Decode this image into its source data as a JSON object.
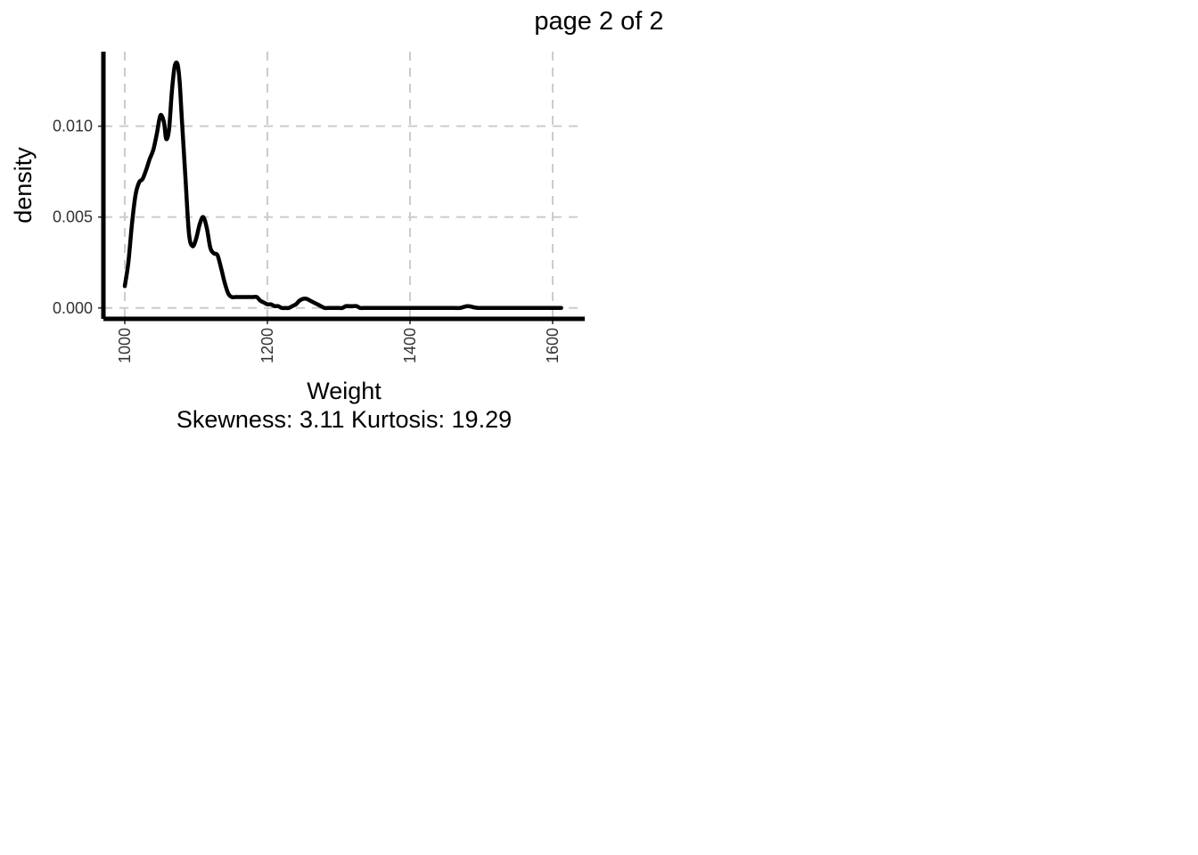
{
  "page_label": "page 2 of 2",
  "chart_data": {
    "type": "line",
    "xlabel": "Weight",
    "subtitle": "Skewness: 3.11 Kurtosis: 19.29",
    "ylabel": "density",
    "xlim": [
      970,
      1645
    ],
    "ylim": [
      -0.0006,
      0.0141
    ],
    "x_ticks": [
      1000,
      1200,
      1400,
      1600
    ],
    "x_tick_labels": [
      "1000",
      "1200",
      "1400",
      "1600"
    ],
    "y_ticks": [
      0.0,
      0.005,
      0.01
    ],
    "y_tick_labels": [
      "0.000",
      "0.005",
      "0.010"
    ],
    "grid": true,
    "series": [
      {
        "x": [
          1000,
          1005,
          1010,
          1015,
          1020,
          1025,
          1030,
          1035,
          1040,
          1045,
          1050,
          1055,
          1058,
          1062,
          1066,
          1070,
          1074,
          1077,
          1080,
          1085,
          1090,
          1095,
          1100,
          1105,
          1110,
          1115,
          1120,
          1125,
          1130,
          1135,
          1140,
          1145,
          1150,
          1155,
          1160,
          1165,
          1170,
          1175,
          1180,
          1185,
          1190,
          1195,
          1200,
          1205,
          1210,
          1215,
          1220,
          1225,
          1230,
          1235,
          1240,
          1245,
          1250,
          1255,
          1260,
          1265,
          1270,
          1275,
          1280,
          1285,
          1290,
          1295,
          1300,
          1305,
          1310,
          1315,
          1320,
          1325,
          1330,
          1335,
          1340,
          1350,
          1400,
          1460,
          1470,
          1475,
          1480,
          1485,
          1490,
          1495,
          1500,
          1550,
          1600,
          1612
        ],
        "y": [
          0.0012,
          0.0025,
          0.0046,
          0.0062,
          0.0069,
          0.0071,
          0.0076,
          0.0082,
          0.0087,
          0.0096,
          0.0106,
          0.0102,
          0.0093,
          0.0098,
          0.0119,
          0.0133,
          0.0134,
          0.0124,
          0.0104,
          0.0072,
          0.0041,
          0.0034,
          0.0038,
          0.0046,
          0.005,
          0.0044,
          0.0033,
          0.003,
          0.0029,
          0.0022,
          0.0014,
          0.0008,
          0.0006,
          0.0006,
          0.0006,
          0.0006,
          0.0006,
          0.0006,
          0.0006,
          0.0006,
          0.0004,
          0.0003,
          0.0002,
          0.0002,
          0.0001,
          0.0001,
          0.0,
          0.0,
          0.0,
          0.0001,
          0.0002,
          0.0004,
          0.0005,
          0.0005,
          0.0004,
          0.0003,
          0.0002,
          0.0001,
          0.0,
          0.0,
          0.0,
          0.0,
          0.0,
          0.0,
          0.0001,
          0.0001,
          0.0001,
          0.0001,
          0.0,
          0.0,
          0.0,
          0.0,
          0.0,
          0.0,
          0.0,
          5e-05,
          0.0001,
          8e-05,
          3e-05,
          0.0,
          0.0,
          0.0,
          0.0,
          0.0
        ]
      }
    ]
  }
}
